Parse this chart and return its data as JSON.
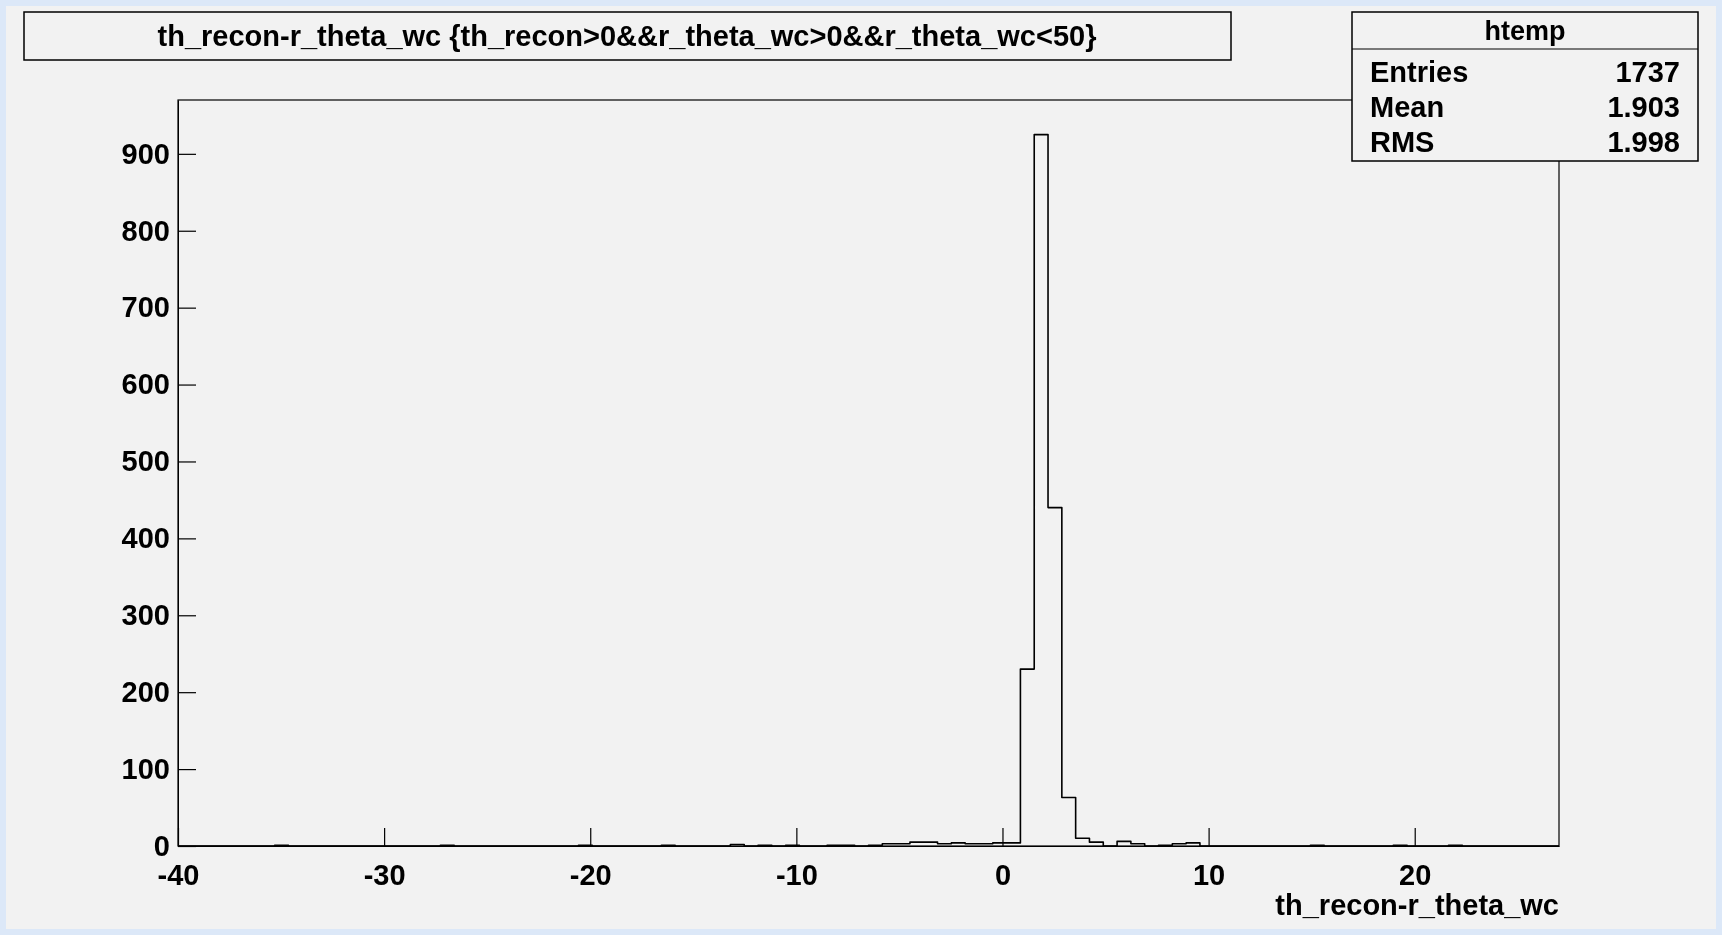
{
  "chart_data": {
    "type": "histogram",
    "title": "th_recon-r_theta_wc {th_recon>0&&r_theta_wc>0&&r_theta_wc<50}",
    "xlabel": "th_recon-r_theta_wc",
    "color": "#000000",
    "bins": [
      -40,
      -39.33,
      -38.66,
      -37.99,
      -37.32,
      -36.65,
      -35.98,
      -35.31,
      -34.64,
      -33.97,
      -33.3,
      -32.63,
      -31.96,
      -31.29,
      -30.62,
      -29.95,
      -29.28,
      -28.61,
      -27.94,
      -27.27,
      -26.6,
      -25.93,
      -25.26,
      -24.59,
      -23.92,
      -23.25,
      -22.58,
      -21.91,
      -21.24,
      -20.57,
      -19.9,
      -19.23,
      -18.56,
      -17.89,
      -17.22,
      -16.55,
      -15.88,
      -15.21,
      -14.54,
      -13.87,
      -13.2,
      -12.53,
      -11.86,
      -11.19,
      -10.52,
      -9.85,
      -9.18,
      -8.51,
      -7.84,
      -7.17,
      -6.5,
      -5.83,
      -5.16,
      -4.49,
      -3.82,
      -3.15,
      -2.48,
      -1.81,
      -1.14,
      -0.47,
      0.2,
      0.87,
      1.54,
      2.21,
      2.88,
      3.55,
      4.22,
      4.89,
      5.56,
      6.23,
      6.9,
      7.57,
      8.24,
      8.91,
      9.58,
      10.25,
      10.92,
      11.59,
      12.26,
      12.93,
      13.6,
      14.27,
      14.94,
      15.61,
      16.28,
      16.95,
      17.62,
      18.29,
      18.96,
      19.63,
      20.3,
      20.97,
      21.64,
      22.31,
      22.98,
      23.65,
      24.32,
      24.99,
      25.66,
      26.33,
      27
    ],
    "values": [
      0,
      0,
      0,
      0,
      0,
      0,
      0,
      1,
      0,
      0,
      0,
      0,
      0,
      0,
      0,
      0,
      0,
      0,
      0,
      1,
      0,
      0,
      0,
      0,
      0,
      0,
      0,
      0,
      0,
      1,
      0,
      0,
      0,
      0,
      0,
      1,
      0,
      0,
      0,
      0,
      2,
      0,
      1,
      0,
      1,
      0,
      0,
      1,
      1,
      0,
      1,
      3,
      3,
      5,
      5,
      3,
      4,
      3,
      3,
      4,
      4,
      230,
      925,
      440,
      63,
      10,
      5,
      0,
      6,
      3,
      0,
      1,
      3,
      4,
      0,
      0,
      0,
      0,
      0,
      0,
      0,
      0,
      1,
      0,
      0,
      0,
      0,
      0,
      1,
      0,
      0,
      0,
      1,
      0,
      0,
      0,
      0,
      0,
      0,
      0
    ],
    "xlim": [
      -40,
      27
    ],
    "ylim": [
      0,
      970
    ],
    "xticks": [
      -40,
      -30,
      -20,
      -10,
      0,
      10,
      20
    ],
    "yticks": [
      0,
      100,
      200,
      300,
      400,
      500,
      600,
      700,
      800,
      900
    ],
    "annotations": [
      "htemp",
      "Entries",
      "1737",
      "Mean",
      "1.903",
      "RMS",
      "1.998"
    ]
  }
}
